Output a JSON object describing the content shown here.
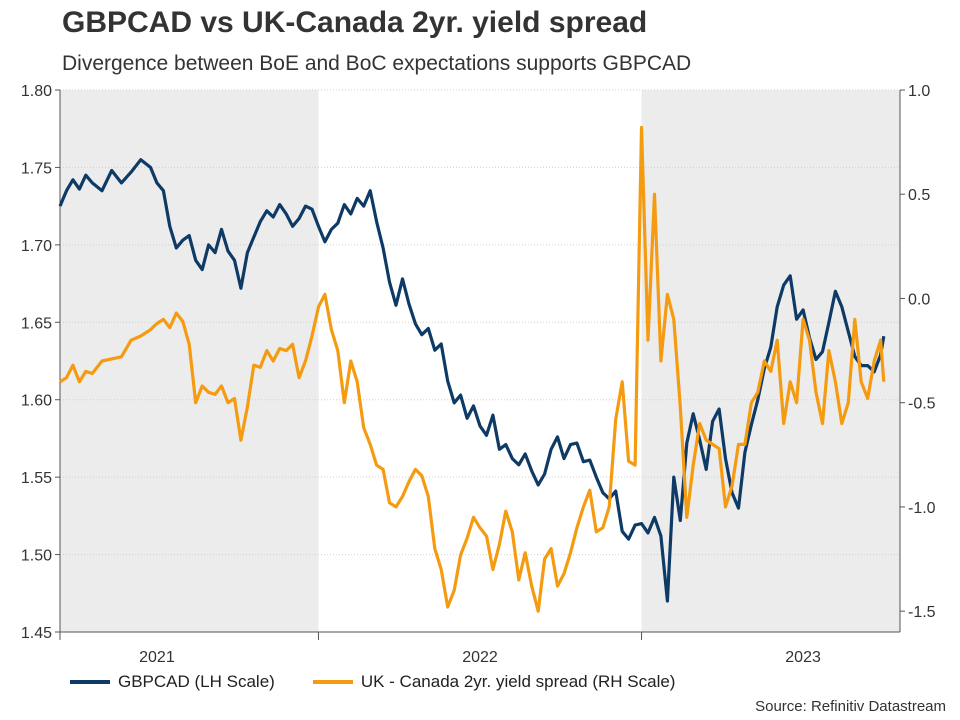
{
  "chart_data": {
    "type": "line",
    "title": "GBPCAD vs UK-Canada 2yr. yield spread",
    "subtitle": "Divergence between BoE and BoC expectations supports GBPCAD",
    "source": "Source: Refinitiv Datastream",
    "x_start": 2020.7,
    "x_end": 2023.3,
    "x_ticks": [
      {
        "value": 2021.0,
        "label": "2021",
        "boundary": 2020.7
      },
      {
        "value": 2022.0,
        "label": "2022",
        "boundary": 2021.5
      },
      {
        "value": 2023.0,
        "label": "2023",
        "boundary": 2022.5
      }
    ],
    "shaded_ranges": [
      [
        2020.7,
        2021.5
      ],
      [
        2022.5,
        2023.3
      ]
    ],
    "y_left": {
      "label": "GBPCAD (LH Scale)",
      "min": 1.45,
      "max": 1.8,
      "ticks": [
        1.45,
        1.5,
        1.55,
        1.6,
        1.65,
        1.7,
        1.75,
        1.8
      ],
      "tick_labels": [
        "1.45",
        "1.50",
        "1.55",
        "1.60",
        "1.65",
        "1.70",
        "1.75",
        "1.80"
      ]
    },
    "y_right": {
      "label": "UK - Canada 2yr. yield spread (RH Scale)",
      "min": -1.6,
      "max": 1.0,
      "ticks": [
        -1.5,
        -1.0,
        -0.5,
        0.0,
        0.5,
        1.0
      ],
      "tick_labels": [
        "-1.5",
        "-1.0",
        "-0.5",
        "0.0",
        "0.5",
        "1.0"
      ]
    },
    "series": [
      {
        "name": "GBPCAD (LH Scale)",
        "axis": "left",
        "color": "#0e3a66",
        "x": [
          2020.7,
          2020.72,
          2020.74,
          2020.76,
          2020.78,
          2020.8,
          2020.83,
          2020.86,
          2020.89,
          2020.92,
          2020.95,
          2020.98,
          2021.0,
          2021.02,
          2021.04,
          2021.06,
          2021.08,
          2021.1,
          2021.12,
          2021.14,
          2021.16,
          2021.18,
          2021.2,
          2021.22,
          2021.24,
          2021.26,
          2021.28,
          2021.3,
          2021.32,
          2021.34,
          2021.36,
          2021.38,
          2021.4,
          2021.42,
          2021.44,
          2021.46,
          2021.48,
          2021.5,
          2021.52,
          2021.54,
          2021.56,
          2021.58,
          2021.6,
          2021.62,
          2021.64,
          2021.66,
          2021.68,
          2021.7,
          2021.72,
          2021.74,
          2021.76,
          2021.78,
          2021.8,
          2021.82,
          2021.84,
          2021.86,
          2021.88,
          2021.9,
          2021.92,
          2021.94,
          2021.96,
          2021.98,
          2022.0,
          2022.02,
          2022.04,
          2022.06,
          2022.08,
          2022.1,
          2022.12,
          2022.14,
          2022.16,
          2022.18,
          2022.2,
          2022.22,
          2022.24,
          2022.26,
          2022.28,
          2022.3,
          2022.32,
          2022.34,
          2022.36,
          2022.38,
          2022.4,
          2022.42,
          2022.44,
          2022.46,
          2022.48,
          2022.5,
          2022.52,
          2022.54,
          2022.56,
          2022.58,
          2022.6,
          2022.62,
          2022.64,
          2022.66,
          2022.68,
          2022.7,
          2022.72,
          2022.74,
          2022.76,
          2022.78,
          2022.8,
          2022.82,
          2022.84,
          2022.86,
          2022.88,
          2022.9,
          2022.92,
          2022.94,
          2022.96,
          2022.98,
          2023.0,
          2023.02,
          2023.04,
          2023.06,
          2023.08,
          2023.1,
          2023.12,
          2023.14,
          2023.16,
          2023.18,
          2023.2,
          2023.22,
          2023.24,
          2023.25
        ],
        "values": [
          1.725,
          1.735,
          1.742,
          1.736,
          1.745,
          1.74,
          1.735,
          1.748,
          1.74,
          1.747,
          1.755,
          1.75,
          1.74,
          1.735,
          1.712,
          1.698,
          1.703,
          1.706,
          1.69,
          1.684,
          1.7,
          1.695,
          1.71,
          1.696,
          1.69,
          1.672,
          1.695,
          1.705,
          1.715,
          1.722,
          1.718,
          1.726,
          1.72,
          1.712,
          1.717,
          1.725,
          1.723,
          1.712,
          1.702,
          1.71,
          1.714,
          1.726,
          1.72,
          1.73,
          1.725,
          1.735,
          1.715,
          1.698,
          1.676,
          1.661,
          1.678,
          1.662,
          1.649,
          1.642,
          1.646,
          1.632,
          1.636,
          1.612,
          1.598,
          1.603,
          1.588,
          1.596,
          1.583,
          1.577,
          1.59,
          1.568,
          1.571,
          1.562,
          1.558,
          1.565,
          1.554,
          1.545,
          1.552,
          1.568,
          1.576,
          1.562,
          1.571,
          1.572,
          1.56,
          1.561,
          1.55,
          1.54,
          1.536,
          1.541,
          1.515,
          1.51,
          1.519,
          1.52,
          1.514,
          1.524,
          1.512,
          1.47,
          1.55,
          1.522,
          1.572,
          1.591,
          1.574,
          1.555,
          1.586,
          1.594,
          1.562,
          1.54,
          1.53,
          1.566,
          1.584,
          1.6,
          1.62,
          1.634,
          1.66,
          1.674,
          1.68,
          1.652,
          1.658,
          1.64,
          1.626,
          1.631,
          1.65,
          1.67,
          1.66,
          1.644,
          1.628,
          1.622,
          1.622,
          1.618,
          1.629,
          1.641
        ],
        "x2": [
          2022.62,
          2022.64,
          2022.66,
          2022.68,
          2022.7,
          2022.72,
          2022.74,
          2022.76,
          2022.78,
          2022.8,
          2022.82,
          2022.84,
          2022.86,
          2022.88,
          2022.9,
          2022.92,
          2022.94,
          2022.96,
          2022.98,
          2023.0,
          2023.02,
          2023.04,
          2023.06,
          2023.08,
          2023.1,
          2023.12,
          2023.14,
          2023.16,
          2023.18,
          2023.2,
          2023.22,
          2023.24,
          2023.25
        ]
      },
      {
        "name": "UK - Canada 2yr. yield spread (RH Scale)",
        "axis": "right",
        "color": "#f59b11",
        "x": [
          2020.7,
          2020.72,
          2020.74,
          2020.76,
          2020.78,
          2020.8,
          2020.83,
          2020.86,
          2020.89,
          2020.92,
          2020.95,
          2020.98,
          2021.0,
          2021.02,
          2021.04,
          2021.06,
          2021.08,
          2021.1,
          2021.12,
          2021.14,
          2021.16,
          2021.18,
          2021.2,
          2021.22,
          2021.24,
          2021.26,
          2021.28,
          2021.3,
          2021.32,
          2021.34,
          2021.36,
          2021.38,
          2021.4,
          2021.42,
          2021.44,
          2021.46,
          2021.48,
          2021.5,
          2021.52,
          2021.54,
          2021.56,
          2021.58,
          2021.6,
          2021.62,
          2021.64,
          2021.66,
          2021.68,
          2021.7,
          2021.72,
          2021.74,
          2021.76,
          2021.78,
          2021.8,
          2021.82,
          2021.84,
          2021.86,
          2021.88,
          2021.9,
          2021.92,
          2021.94,
          2021.96,
          2021.98,
          2022.0,
          2022.02,
          2022.04,
          2022.06,
          2022.08,
          2022.1,
          2022.12,
          2022.14,
          2022.16,
          2022.18,
          2022.2,
          2022.22,
          2022.24,
          2022.26,
          2022.28,
          2022.3,
          2022.32,
          2022.34,
          2022.36,
          2022.38,
          2022.4,
          2022.42,
          2022.44,
          2022.46,
          2022.48,
          2022.5,
          2022.52,
          2022.54,
          2022.56,
          2022.58,
          2022.6,
          2022.62,
          2022.64,
          2022.66,
          2022.68,
          2022.7,
          2022.72,
          2022.74,
          2022.76,
          2022.78,
          2022.8,
          2022.82,
          2022.84,
          2022.86,
          2022.88,
          2022.9,
          2022.92,
          2022.94,
          2022.96,
          2022.98,
          2023.0,
          2023.02,
          2023.04,
          2023.06,
          2023.08,
          2023.1,
          2023.12,
          2023.14,
          2023.16,
          2023.18,
          2023.2,
          2023.22,
          2023.24,
          2023.25
        ],
        "values": [
          -0.4,
          -0.38,
          -0.32,
          -0.4,
          -0.35,
          -0.36,
          -0.3,
          -0.29,
          -0.28,
          -0.2,
          -0.18,
          -0.15,
          -0.12,
          -0.1,
          -0.14,
          -0.07,
          -0.11,
          -0.22,
          -0.5,
          -0.42,
          -0.45,
          -0.46,
          -0.42,
          -0.5,
          -0.48,
          -0.68,
          -0.52,
          -0.32,
          -0.33,
          -0.25,
          -0.3,
          -0.24,
          -0.25,
          -0.22,
          -0.38,
          -0.3,
          -0.18,
          -0.04,
          0.02,
          -0.15,
          -0.25,
          -0.5,
          -0.3,
          -0.4,
          -0.62,
          -0.7,
          -0.8,
          -0.82,
          -0.98,
          -1.0,
          -0.95,
          -0.88,
          -0.82,
          -0.85,
          -0.95,
          -1.2,
          -1.3,
          -1.48,
          -1.4,
          -1.23,
          -1.15,
          -1.05,
          -1.1,
          -1.14,
          -1.3,
          -1.18,
          -1.02,
          -1.12,
          -1.35,
          -1.22,
          -1.38,
          -1.5,
          -1.25,
          -1.2,
          -1.38,
          -1.32,
          -1.22,
          -1.1,
          -1.0,
          -0.92,
          -1.12,
          -1.1,
          -1.0,
          -0.58,
          -0.4,
          -0.78,
          -0.8,
          0.82,
          -0.2,
          0.5,
          -0.3,
          0.02,
          -0.1,
          -0.52,
          -1.05,
          -0.8,
          -0.6,
          -0.68,
          -0.7,
          -0.72,
          -1.0,
          -0.9,
          -0.7,
          -0.7,
          -0.5,
          -0.45,
          -0.3,
          -0.35,
          -0.2,
          -0.6,
          -0.4,
          -0.5,
          -0.1,
          -0.2,
          -0.45,
          -0.6,
          -0.25,
          -0.4,
          -0.6,
          -0.5,
          -0.1,
          -0.4,
          -0.48,
          -0.3,
          -0.2,
          -0.4
        ]
      }
    ]
  }
}
